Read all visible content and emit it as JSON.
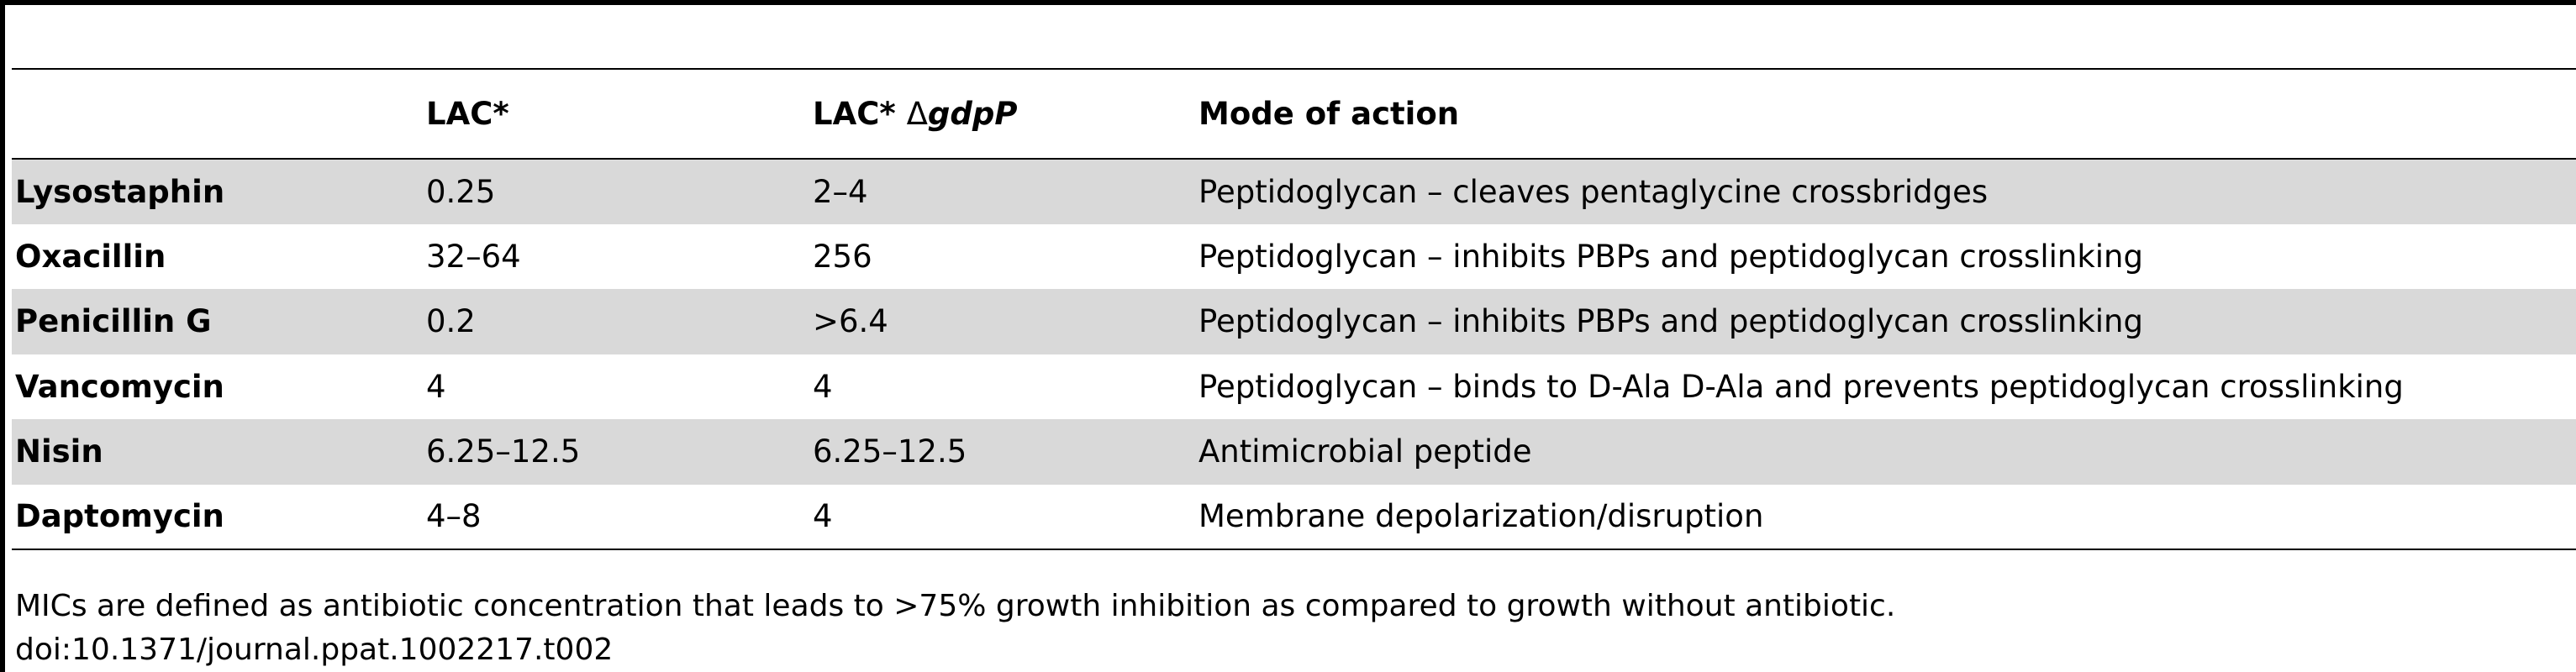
{
  "table": {
    "headers": {
      "col1": "",
      "col2": "LAC*",
      "col3_prefix": "LAC* ",
      "col3_delta": "Δ",
      "col3_gene": "gdpP",
      "col4": "Mode of action"
    },
    "rows": [
      {
        "agent": "Lysostaphin",
        "lac": "0.25",
        "gdpp": "2–4",
        "mode": "Peptidoglycan – cleaves pentaglycine crossbridges"
      },
      {
        "agent": "Oxacillin",
        "lac": "32–64",
        "gdpp": "256",
        "mode": "Peptidoglycan – inhibits PBPs and peptidoglycan crosslinking"
      },
      {
        "agent": "Penicillin G",
        "lac": "0.2",
        "gdpp": ">6.4",
        "mode": "Peptidoglycan – inhibits PBPs and peptidoglycan crosslinking"
      },
      {
        "agent": "Vancomycin",
        "lac": "4",
        "gdpp": "4",
        "mode": "Peptidoglycan – binds to D-Ala D-Ala and prevents peptidoglycan crosslinking"
      },
      {
        "agent": "Nisin",
        "lac": "6.25–12.5",
        "gdpp": "6.25–12.5",
        "mode": "Antimicrobial peptide"
      },
      {
        "agent": "Daptomycin",
        "lac": "4–8",
        "gdpp": "4",
        "mode": "Membrane depolarization/disruption"
      }
    ]
  },
  "footnote": {
    "note": "MICs are defined as antibiotic concentration that leads to >75% growth inhibition as compared to growth without antibiotic.",
    "doi": "doi:10.1371/journal.ppat.1002217.t002"
  },
  "colors": {
    "shaded_row": "#d9d9d9",
    "rule": "#000000"
  }
}
